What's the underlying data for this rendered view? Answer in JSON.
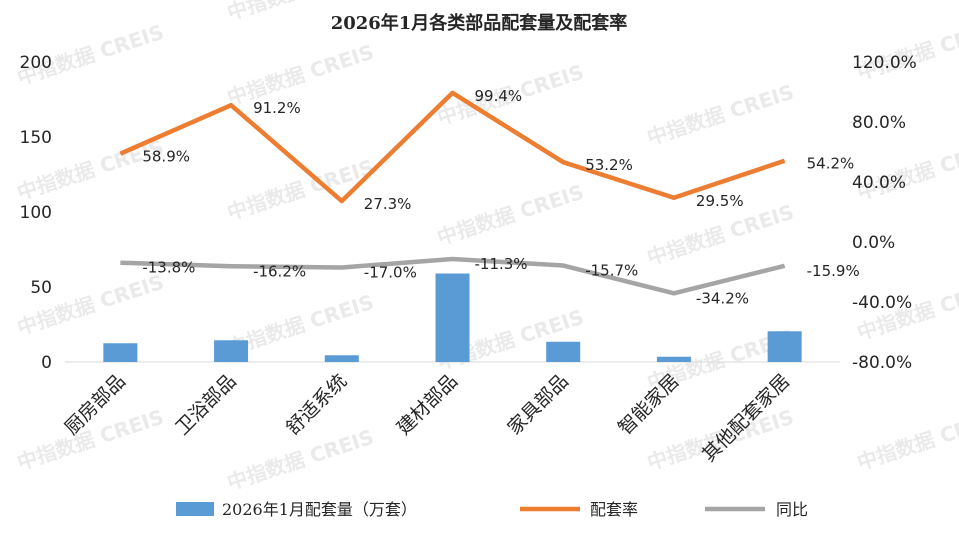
{
  "chart_data": {
    "type": "bar",
    "title": "2026年1月各类部品配套量及配套率",
    "categories": [
      "厨房部品",
      "卫浴部品",
      "舒适系统",
      "建材部品",
      "家具部品",
      "智能家居",
      "其他配套家居"
    ],
    "series": [
      {
        "name": "2026年1月配套量（万套）",
        "type": "bar",
        "axis": "left",
        "color": "#5b9bd5",
        "values": [
          12.5,
          14.5,
          4.5,
          59.0,
          13.5,
          3.5,
          20.5
        ]
      },
      {
        "name": "配套率",
        "type": "line",
        "axis": "right",
        "color": "#ed7d31",
        "values": [
          58.9,
          91.2,
          27.3,
          99.4,
          53.2,
          29.5,
          54.2
        ],
        "labels": [
          "58.9%",
          "91.2%",
          "27.3%",
          "99.4%",
          "53.2%",
          "29.5%",
          "54.2%"
        ]
      },
      {
        "name": "同比",
        "type": "line",
        "axis": "right",
        "color": "#a5a5a5",
        "values": [
          -13.8,
          -16.2,
          -17.0,
          -11.3,
          -15.7,
          -34.2,
          -15.9
        ],
        "labels": [
          "-13.8%",
          "-16.2%",
          "-17.0%",
          "-11.3%",
          "-15.7%",
          "-34.2%",
          "-15.9%"
        ]
      }
    ],
    "ylim_left": [
      0,
      200
    ],
    "yticks_left": [
      "0",
      "50",
      "100",
      "150",
      "200"
    ],
    "ylim_right": [
      -80,
      120
    ],
    "yticks_right": [
      "-80.0%",
      "-40.0%",
      "0.0%",
      "40.0%",
      "80.0%",
      "120.0%"
    ],
    "grid": false,
    "legend_position": "bottom"
  },
  "watermark": "中指数据 CREIS"
}
